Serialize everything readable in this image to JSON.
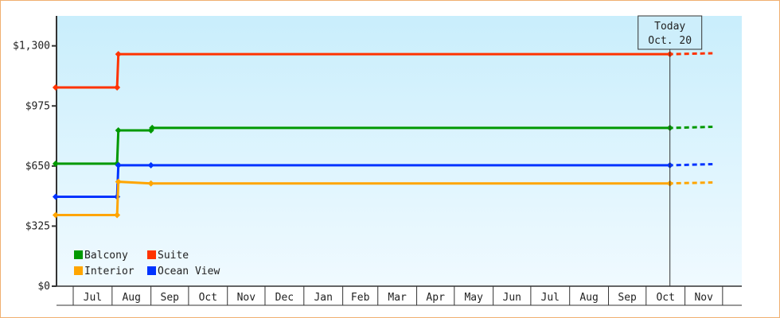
{
  "chart_data": {
    "type": "line",
    "step": true,
    "y_ticks": [
      "$0",
      "$325",
      "$650",
      "$975",
      "$1,300"
    ],
    "y_tick_values": [
      0,
      325,
      650,
      975,
      1300
    ],
    "ylim": [
      0,
      1462
    ],
    "x_ticks": [
      "Jul",
      "Aug",
      "Sep",
      "Oct",
      "Nov",
      "Dec",
      "Jan",
      "Feb",
      "Mar",
      "Apr",
      "May",
      "Jun",
      "Jul",
      "Aug",
      "Sep",
      "Oct",
      "Nov"
    ],
    "today": {
      "line1": "Today",
      "line2": "Oct. 20",
      "date": "Oct 20"
    },
    "colors": {
      "Balcony": "#009900",
      "Suite": "#ff3300",
      "Interior": "#ffa500",
      "Ocean View": "#0033ff"
    },
    "series": [
      {
        "name": "Suite",
        "points": [
          [
            "Jun 17",
            1075
          ],
          [
            "Aug 5",
            1075
          ],
          [
            "Aug 6",
            1255
          ],
          [
            "Oct 20",
            1255
          ]
        ],
        "forecast": [
          [
            "Oct 20",
            1255
          ],
          [
            "Nov 23",
            1260
          ]
        ]
      },
      {
        "name": "Balcony",
        "points": [
          [
            "Jun 17",
            663
          ],
          [
            "Aug 5",
            663
          ],
          [
            "Aug 6",
            843
          ],
          [
            "Sep 1",
            843
          ],
          [
            "Sep 2",
            856
          ],
          [
            "Oct 20",
            856
          ]
        ],
        "forecast": [
          [
            "Oct 20",
            856
          ],
          [
            "Nov 23",
            862
          ]
        ]
      },
      {
        "name": "Ocean View",
        "points": [
          [
            "Jun 17",
            484
          ],
          [
            "Aug 5",
            484
          ],
          [
            "Aug 6",
            654
          ],
          [
            "Sep 1",
            654
          ],
          [
            "Oct 20",
            654
          ]
        ],
        "forecast": [
          [
            "Oct 20",
            654
          ],
          [
            "Nov 23",
            660
          ]
        ]
      },
      {
        "name": "Interior",
        "points": [
          [
            "Jun 17",
            385
          ],
          [
            "Aug 5",
            385
          ],
          [
            "Aug 6",
            565
          ],
          [
            "Sep 1",
            556
          ],
          [
            "Oct 20",
            556
          ]
        ],
        "forecast": [
          [
            "Oct 20",
            556
          ],
          [
            "Nov 23",
            561
          ]
        ]
      }
    ],
    "legend": {
      "placement": "bottom-left",
      "items": [
        "Balcony",
        "Suite",
        "Interior",
        "Ocean View"
      ]
    }
  }
}
